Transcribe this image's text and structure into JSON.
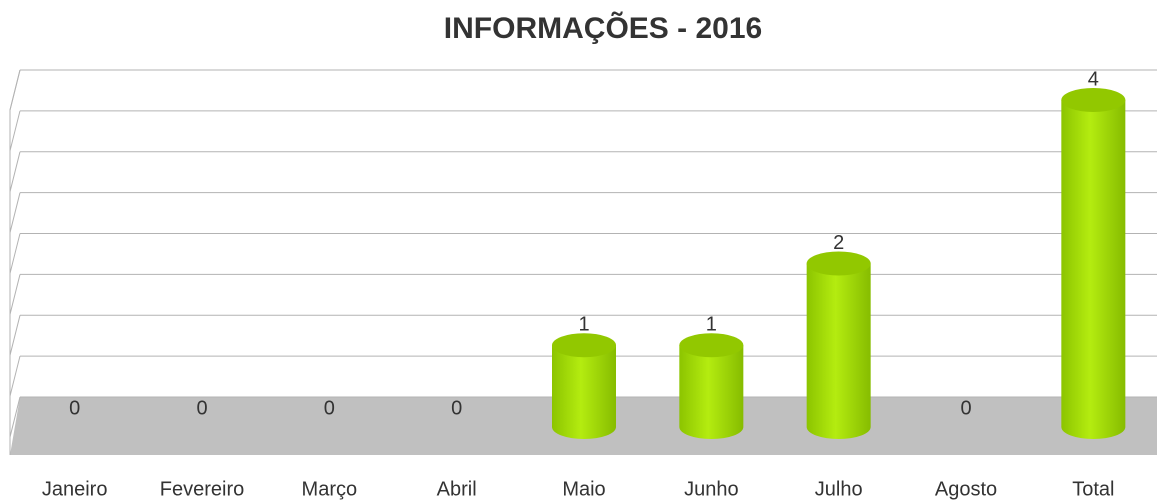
{
  "chart_data": {
    "type": "bar",
    "title": "INFORMAÇÕES - 2016",
    "categories": [
      "Janeiro",
      "Fevereiro",
      "Março",
      "Abril",
      "Maio",
      "Junho",
      "Julho",
      "Agosto",
      "Total"
    ],
    "values": [
      0,
      0,
      0,
      0,
      1,
      1,
      2,
      0,
      4
    ],
    "color": "#a6e000",
    "ylim": [
      0,
      4
    ],
    "yticks": [
      0,
      0.5,
      1,
      1.5,
      2,
      2.5,
      3,
      3.5,
      4
    ],
    "grid": true
  }
}
